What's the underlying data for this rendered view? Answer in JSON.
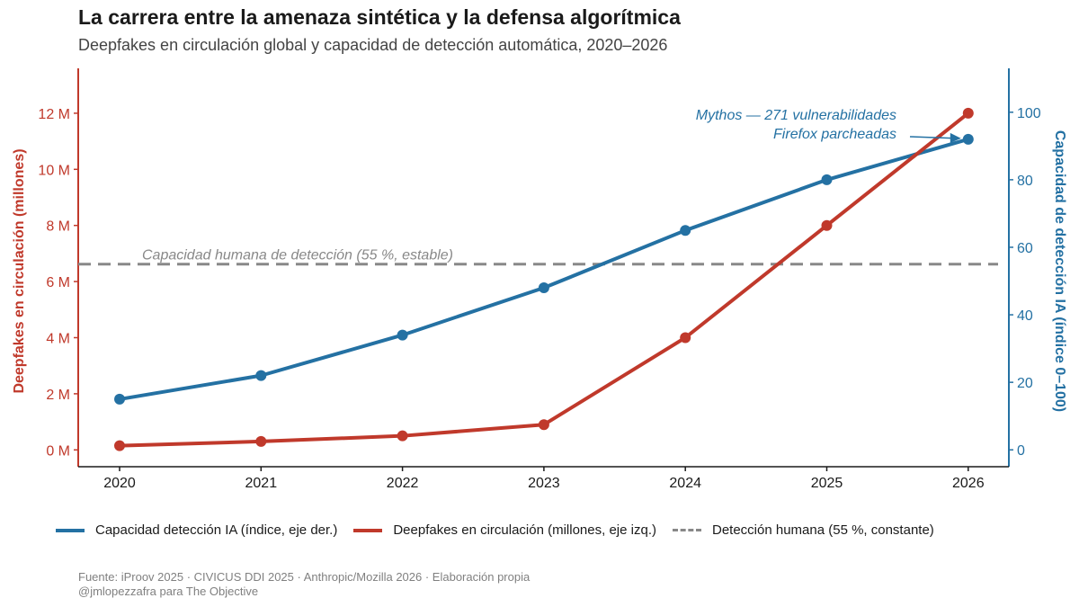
{
  "title": "La carrera entre la amenaza sintética y la defensa algorítmica",
  "subtitle": "Deepfakes en circulación global y capacidad de detección automática, 2020–2026",
  "colors": {
    "deepfakes": "#c0392b",
    "ia": "#2471a3",
    "human": "#888888"
  },
  "chart_data": {
    "type": "line",
    "x": [
      "2020",
      "2021",
      "2022",
      "2023",
      "2024",
      "2025",
      "2026"
    ],
    "series": [
      {
        "name": "Capacidad detección IA (índice, eje der.)",
        "axis": "right",
        "values": [
          15,
          22,
          34,
          48,
          65,
          80,
          92
        ]
      },
      {
        "name": "Deepfakes en circulación (millones, eje izq.)",
        "axis": "left",
        "values": [
          0.15,
          0.3,
          0.5,
          0.9,
          4,
          8,
          12
        ]
      }
    ],
    "reference_line": {
      "name": "Detección humana (55 %, constante)",
      "axis": "right",
      "value": 55,
      "label": "Capacidad humana de detección (55 %, estable)"
    },
    "annotation": {
      "lines": [
        "Mythos — 271 vulnerabilidades",
        "Firefox parcheadas"
      ],
      "x": "2026",
      "value": 92
    },
    "left_axis": {
      "label": "Deepfakes en circulación (millones)",
      "ticks": [
        0,
        2,
        4,
        6,
        8,
        10,
        12
      ],
      "tick_labels": [
        "0 M",
        "2 M",
        "4 M",
        "6 M",
        "8 M",
        "10 M",
        "12 M"
      ],
      "range": [
        -0.6,
        13.6
      ]
    },
    "right_axis": {
      "label": "Capacidad de detección IA (índice 0–100)",
      "ticks": [
        0,
        20,
        40,
        60,
        80,
        100
      ],
      "tick_labels": [
        "0",
        "20",
        "40",
        "60",
        "80",
        "100"
      ],
      "range": [
        -5,
        113
      ]
    },
    "grid": false,
    "legend_position": "bottom"
  },
  "legend": [
    {
      "label": "Capacidad detección IA (índice, eje der.)",
      "style": "solid",
      "color": "#2471a3"
    },
    {
      "label": "Deepfakes en circulación (millones, eje izq.)",
      "style": "solid",
      "color": "#c0392b"
    },
    {
      "label": "Detección humana (55 %, constante)",
      "style": "dashed",
      "color": "#888888"
    }
  ],
  "source": "Fuente: iProov 2025 · CIVICUS DDI 2025 · Anthropic/Mozilla 2026 · Elaboración propia",
  "credit": "@jmlopezzafra para The Objective"
}
